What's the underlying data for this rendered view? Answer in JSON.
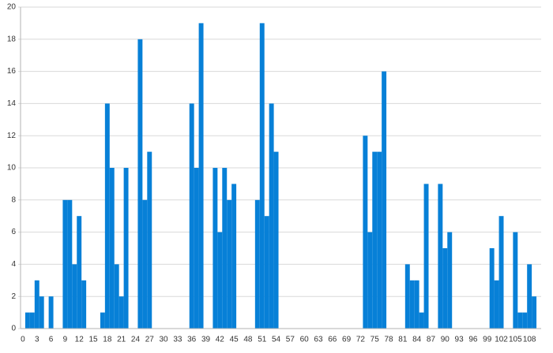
{
  "chart_data": {
    "type": "bar",
    "color": "#0780d7",
    "grid": true,
    "ylim": [
      0,
      20
    ],
    "yticks": [
      0,
      2,
      4,
      6,
      8,
      10,
      12,
      14,
      16,
      18,
      20
    ],
    "categories": [
      "0",
      null,
      null,
      "3",
      null,
      null,
      "6",
      null,
      null,
      "9",
      null,
      null,
      "12",
      null,
      null,
      "15",
      null,
      null,
      "18",
      null,
      null,
      "21",
      null,
      null,
      "24",
      null,
      null,
      "27",
      null,
      null,
      "30",
      null,
      null,
      "33",
      null,
      null,
      "36",
      null,
      null,
      "39",
      null,
      null,
      "42",
      null,
      null,
      "45",
      null,
      null,
      "48",
      null,
      null,
      "51",
      null,
      null,
      "54",
      null,
      null,
      "57",
      null,
      null,
      "60",
      null,
      null,
      "63",
      null,
      null,
      "66",
      null,
      null,
      "69",
      null,
      null,
      "72",
      null,
      null,
      "75",
      null,
      null,
      "78",
      null,
      null,
      "81",
      null,
      null,
      "84",
      null,
      null,
      "87",
      null,
      null,
      "90",
      null,
      null,
      "93",
      null,
      null,
      "96",
      null,
      null,
      "99",
      null,
      null,
      "102",
      null,
      null,
      "105",
      null,
      null,
      "108",
      null,
      null
    ],
    "values": [
      0,
      1,
      1,
      3,
      2,
      0,
      2,
      0,
      0,
      8,
      8,
      4,
      7,
      3,
      0,
      0,
      0,
      1,
      14,
      10,
      4,
      2,
      10,
      0,
      0,
      18,
      8,
      11,
      0,
      0,
      0,
      0,
      0,
      0,
      0,
      0,
      14,
      10,
      19,
      0,
      0,
      10,
      6,
      10,
      8,
      9,
      0,
      0,
      0,
      0,
      8,
      19,
      7,
      14,
      11,
      0,
      0,
      0,
      0,
      0,
      0,
      0,
      0,
      0,
      0,
      0,
      0,
      0,
      0,
      0,
      0,
      0,
      0,
      12,
      6,
      11,
      11,
      16,
      0,
      0,
      0,
      0,
      4,
      3,
      3,
      1,
      9,
      0,
      0,
      9,
      5,
      6,
      0,
      0,
      0,
      0,
      0,
      0,
      0,
      0,
      5,
      3,
      7,
      0,
      0,
      6,
      1,
      1,
      4,
      2,
      0
    ]
  }
}
